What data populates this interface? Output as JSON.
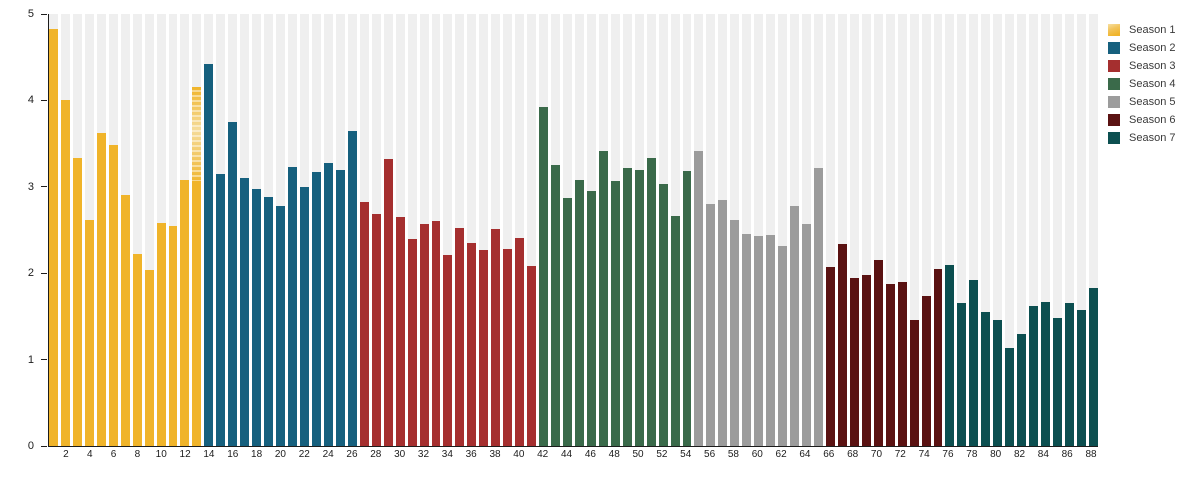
{
  "chart_data": {
    "type": "bar",
    "title": "",
    "xlabel": "",
    "ylabel": "",
    "ylim": [
      0,
      5
    ],
    "yticks": [
      0,
      1,
      2,
      3,
      4,
      5
    ],
    "xtick_step": 2,
    "x_range": [
      1,
      88
    ],
    "grid": "column-background-stripes",
    "legend_position": "top-right",
    "faded_episode": 13,
    "series": [
      {
        "name": "Season 1",
        "color": "#F0B42A",
        "swatch_style": "gradient",
        "start_episode": 1,
        "values": [
          4.83,
          4.0,
          3.33,
          2.62,
          3.62,
          3.48,
          2.9,
          2.22,
          2.04,
          2.58,
          2.55,
          3.08,
          4.15
        ]
      },
      {
        "name": "Season 2",
        "color": "#16607E",
        "swatch_style": "solid",
        "start_episode": 14,
        "values": [
          4.42,
          3.15,
          3.75,
          3.1,
          2.98,
          2.88,
          2.78,
          3.23,
          3.0,
          3.17,
          3.28,
          3.2,
          3.65
        ]
      },
      {
        "name": "Season 3",
        "color": "#A52F2F",
        "swatch_style": "solid",
        "start_episode": 27,
        "values": [
          2.83,
          2.68,
          3.32,
          2.65,
          2.4,
          2.57,
          2.61,
          2.21,
          2.52,
          2.35,
          2.27,
          2.51,
          2.28,
          2.41,
          2.08
        ]
      },
      {
        "name": "Season 4",
        "color": "#3A6A4A",
        "swatch_style": "solid",
        "start_episode": 42,
        "values": [
          3.92,
          3.25,
          2.87,
          3.08,
          2.95,
          3.41,
          3.07,
          3.22,
          3.2,
          3.33,
          3.03,
          2.66,
          3.18
        ]
      },
      {
        "name": "Season 5",
        "color": "#9C9C9C",
        "swatch_style": "solid",
        "start_episode": 55,
        "values": [
          3.41,
          2.8,
          2.85,
          2.62,
          2.45,
          2.43,
          2.44,
          2.32,
          2.78,
          2.57,
          3.22
        ]
      },
      {
        "name": "Season 6",
        "color": "#5A1212",
        "swatch_style": "solid",
        "start_episode": 66,
        "values": [
          2.07,
          2.34,
          1.95,
          1.98,
          2.15,
          1.87,
          1.9,
          1.46,
          1.74,
          2.05
        ]
      },
      {
        "name": "Season 7",
        "color": "#0C4F50",
        "swatch_style": "solid",
        "start_episode": 76,
        "values": [
          2.1,
          1.66,
          1.92,
          1.55,
          1.46,
          1.14,
          1.3,
          1.62,
          1.67,
          1.48,
          1.65,
          1.58,
          1.83
        ]
      }
    ]
  },
  "colors": {
    "background": "#FFFFFF",
    "column_stripe": "#EFEFEF",
    "axis": "#1C1C1C",
    "tick_text": "#1C1C1C",
    "legend_text": "#3A3A3A"
  }
}
